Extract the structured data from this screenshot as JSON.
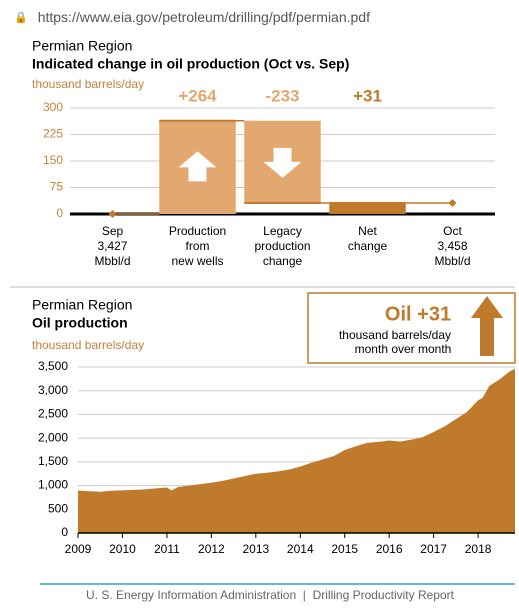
{
  "url": "https://www.eia.gov/petroleum/drilling/pdf/permian.pdf",
  "chart_data": [
    {
      "type": "waterfall",
      "title": "Permian Region",
      "subtitle": "Indicated change in oil production (Oct vs. Sep)",
      "y_label": "thousand barrels/day",
      "categories": [
        [
          "Sep",
          "3,427",
          "Mbbl/d"
        ],
        [
          "Production",
          "from",
          "new wells"
        ],
        [
          "Legacy",
          "production",
          "change"
        ],
        [
          "Net",
          "change"
        ],
        [
          "Oct",
          "3,458",
          "Mbbl/d"
        ]
      ],
      "kinds": [
        "point",
        "delta",
        "delta",
        "total",
        "point"
      ],
      "values": [
        0,
        264,
        -233,
        31,
        31
      ],
      "value_labels": [
        null,
        "+264",
        "-233",
        "+31",
        null
      ],
      "colors": [
        "#c07a2c",
        "#e3a86f",
        "#e3a86f",
        "#c07a2c",
        "#c07a2c"
      ],
      "ylim": [
        0,
        300
      ],
      "yticks": [
        0,
        75,
        150,
        225,
        300
      ],
      "grid": true
    },
    {
      "type": "area",
      "title": "Permian Region",
      "subtitle": "Oil production",
      "y_label": "thousand barrels/day",
      "color": "#c07a2c",
      "x": [
        2009,
        2009.25,
        2009.5,
        2009.75,
        2010,
        2010.25,
        2010.5,
        2010.75,
        2011,
        2011.1,
        2011.25,
        2011.5,
        2011.75,
        2012,
        2012.25,
        2012.5,
        2012.75,
        2013,
        2013.25,
        2013.5,
        2013.75,
        2014,
        2014.25,
        2014.5,
        2014.75,
        2015,
        2015.25,
        2015.5,
        2015.75,
        2016,
        2016.25,
        2016.5,
        2016.75,
        2017,
        2017.25,
        2017.5,
        2017.75,
        2018,
        2018.1,
        2018.25,
        2018.5,
        2018.67,
        2018.75,
        2018.83
      ],
      "values": [
        900,
        880,
        870,
        890,
        900,
        910,
        920,
        940,
        960,
        900,
        970,
        1000,
        1030,
        1060,
        1100,
        1150,
        1200,
        1250,
        1270,
        1300,
        1340,
        1400,
        1480,
        1550,
        1620,
        1750,
        1830,
        1900,
        1920,
        1950,
        1930,
        1970,
        2020,
        2130,
        2250,
        2400,
        2550,
        2800,
        2850,
        3100,
        3250,
        3380,
        3427,
        3458
      ],
      "xlim": [
        2009,
        2018.83
      ],
      "xticks": [
        2009,
        2010,
        2011,
        2012,
        2013,
        2014,
        2015,
        2016,
        2017,
        2018
      ],
      "ylim": [
        0,
        3500
      ],
      "yticks": [
        0,
        500,
        {
          "value": 1000,
          "label": "1,000"
        },
        {
          "value": 1500,
          "label": "1,500"
        },
        {
          "value": 2000,
          "label": "2,000"
        },
        {
          "value": 2500,
          "label": "2,500"
        },
        {
          "value": 3000,
          "label": "3,000"
        },
        {
          "value": 3500,
          "label": "3,500"
        }
      ],
      "grid": true,
      "annotation": {
        "title": "Oil +31",
        "lines": [
          "thousand barrels/day",
          "month over month"
        ]
      }
    }
  ],
  "footer": "U. S. Energy Information Administration  |  Drilling Productivity Report"
}
